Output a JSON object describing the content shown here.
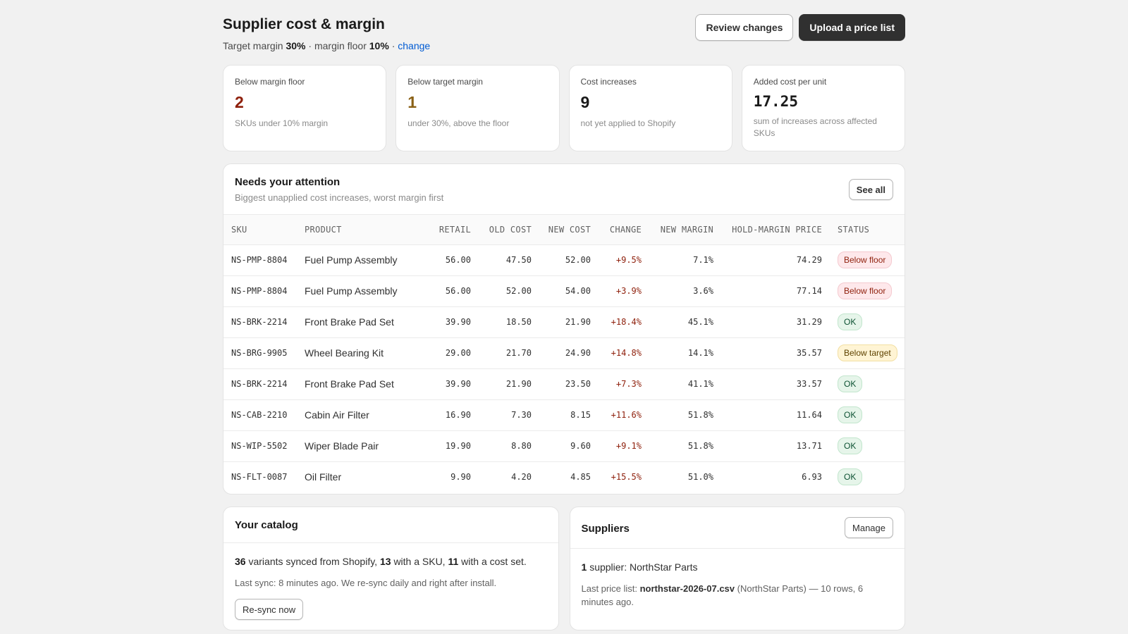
{
  "header": {
    "title": "Supplier cost & margin",
    "target_label": "Target margin",
    "target_value": "30%",
    "floor_label": "· margin floor",
    "floor_value": "10%",
    "sep": "·",
    "change_link": "change",
    "review_button": "Review changes",
    "upload_button": "Upload a price list"
  },
  "stats": [
    {
      "label": "Below margin floor",
      "value": "2",
      "note": "SKUs under 10% margin"
    },
    {
      "label": "Below target margin",
      "value": "1",
      "note": "under 30%, above the floor"
    },
    {
      "label": "Cost increases",
      "value": "9",
      "note": "not yet applied to Shopify"
    },
    {
      "label": "Added cost per unit",
      "value": "17.25",
      "note": "sum of increases across affected SKUs"
    }
  ],
  "attention": {
    "title": "Needs your attention",
    "subtitle": "Biggest unapplied cost increases, worst margin first",
    "see_all": "See all",
    "columns": [
      "SKU",
      "PRODUCT",
      "RETAIL",
      "OLD COST",
      "NEW COST",
      "CHANGE",
      "NEW MARGIN",
      "HOLD-MARGIN PRICE",
      "STATUS"
    ],
    "rows": [
      {
        "sku": "NS-PMP-8804",
        "product": "Fuel Pump Assembly",
        "retail": "56.00",
        "old": "47.50",
        "new": "52.00",
        "change": "+9.5%",
        "margin": "7.1%",
        "hold": "74.29",
        "status": "Below floor",
        "status_kind": "red"
      },
      {
        "sku": "NS-PMP-8804",
        "product": "Fuel Pump Assembly",
        "retail": "56.00",
        "old": "52.00",
        "new": "54.00",
        "change": "+3.9%",
        "margin": "3.6%",
        "hold": "77.14",
        "status": "Below floor",
        "status_kind": "red"
      },
      {
        "sku": "NS-BRK-2214",
        "product": "Front Brake Pad Set",
        "retail": "39.90",
        "old": "18.50",
        "new": "21.90",
        "change": "+18.4%",
        "margin": "45.1%",
        "hold": "31.29",
        "status": "OK",
        "status_kind": "ok"
      },
      {
        "sku": "NS-BRG-9905",
        "product": "Wheel Bearing Kit",
        "retail": "29.00",
        "old": "21.70",
        "new": "24.90",
        "change": "+14.8%",
        "margin": "14.1%",
        "hold": "35.57",
        "status": "Below target",
        "status_kind": "amber"
      },
      {
        "sku": "NS-BRK-2214",
        "product": "Front Brake Pad Set",
        "retail": "39.90",
        "old": "21.90",
        "new": "23.50",
        "change": "+7.3%",
        "margin": "41.1%",
        "hold": "33.57",
        "status": "OK",
        "status_kind": "ok"
      },
      {
        "sku": "NS-CAB-2210",
        "product": "Cabin Air Filter",
        "retail": "16.90",
        "old": "7.30",
        "new": "8.15",
        "change": "+11.6%",
        "margin": "51.8%",
        "hold": "11.64",
        "status": "OK",
        "status_kind": "ok"
      },
      {
        "sku": "NS-WIP-5502",
        "product": "Wiper Blade Pair",
        "retail": "19.90",
        "old": "8.80",
        "new": "9.60",
        "change": "+9.1%",
        "margin": "51.8%",
        "hold": "13.71",
        "status": "OK",
        "status_kind": "ok"
      },
      {
        "sku": "NS-FLT-0087",
        "product": "Oil Filter",
        "retail": "9.90",
        "old": "4.20",
        "new": "4.85",
        "change": "+15.5%",
        "margin": "51.0%",
        "hold": "6.93",
        "status": "OK",
        "status_kind": "ok"
      }
    ]
  },
  "catalog": {
    "title": "Your catalog",
    "variants": "36",
    "variants_text": "variants synced from Shopify,",
    "with_sku": "13",
    "with_sku_text": "with a SKU,",
    "with_cost": "11",
    "with_cost_text": "with a cost set.",
    "sync_note": "Last sync: 8 minutes ago. We re-sync daily and right after install.",
    "resync_button": "Re-sync now"
  },
  "suppliers": {
    "title": "Suppliers",
    "manage_button": "Manage",
    "count": "1",
    "count_text": "supplier: NorthStar Parts",
    "last_label": "Last price list:",
    "last_file": "northstar-2026-07.csv",
    "last_text": "(NorthStar Parts) — 10 rows, 6 minutes ago."
  },
  "colors": {
    "primary_button": "#303030",
    "danger_text": "#8e1f0b",
    "warning_text": "#8a6116",
    "link": "#005bd3",
    "background": "#f1f1f1"
  }
}
